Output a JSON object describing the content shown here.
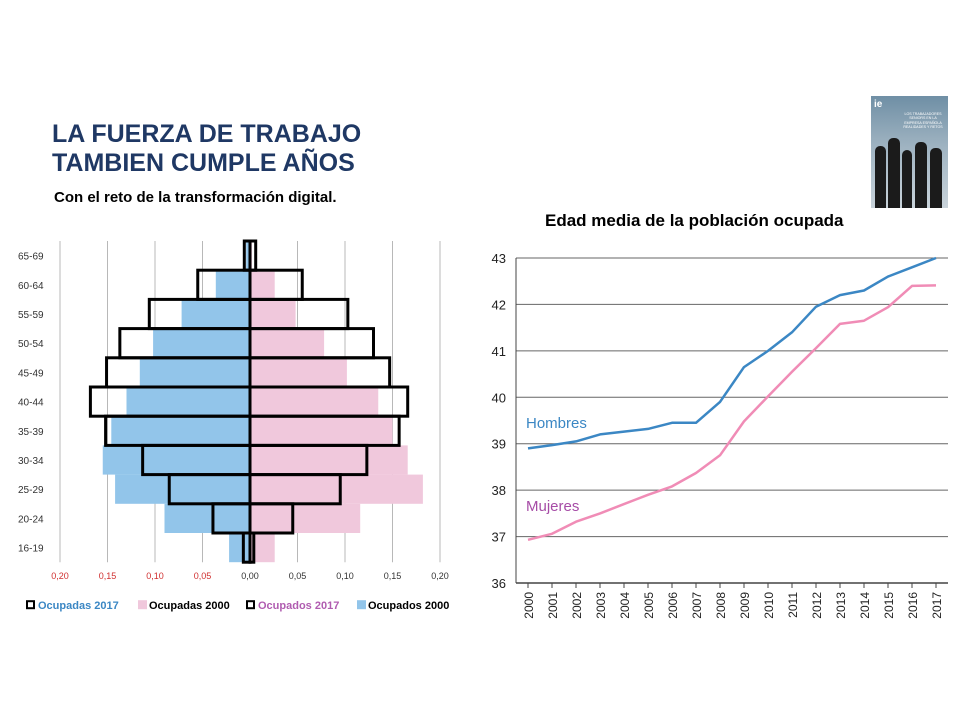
{
  "slide": {
    "title_line1": "LA FUERZA DE TRABAJO",
    "title_line2": "TAMBIEN CUMPLE AÑOS",
    "subtitle": "Con el reto de la transformación digital."
  },
  "book_cover": {
    "logo": "ie",
    "text": "LOS TRABAJADORES SENIORS EN LA EMPRESA ESPAÑOLA REALIDADES Y RETOS"
  },
  "colors": {
    "title": "#1f3864",
    "ocupadas_2000": "#f0c8dc",
    "ocupados_2000": "#92c5ea",
    "outline_2017": "#000000",
    "hombres_line": "#3b87c4",
    "mujeres_line": "#f08cb6",
    "hombres_label": "#3b87c4",
    "mujeres_label": "#a64ca6",
    "grid": "#999999"
  },
  "chart_data": [
    {
      "type": "bar",
      "subtype": "population-pyramid",
      "title": "",
      "categories": [
        "65-69",
        "60-64",
        "55-59",
        "50-54",
        "45-49",
        "40-44",
        "35-39",
        "30-34",
        "25-29",
        "20-24",
        "16-19"
      ],
      "x_ticks": [
        "0,20",
        "0,15",
        "0,10",
        "0,05",
        "0,00",
        "0,05",
        "0,10",
        "0,15",
        "0,20"
      ],
      "xlim": [
        -0.2,
        0.2
      ],
      "series": [
        {
          "name": "Ocupados 2000",
          "side": "left",
          "style": "fill",
          "values": [
            0.004,
            0.036,
            0.072,
            0.102,
            0.116,
            0.13,
            0.146,
            0.155,
            0.142,
            0.09,
            0.022
          ]
        },
        {
          "name": "Ocupados 2017",
          "side": "left",
          "style": "outline",
          "values": [
            0.006,
            0.055,
            0.106,
            0.137,
            0.151,
            0.168,
            0.152,
            0.113,
            0.085,
            0.039,
            0.007
          ]
        },
        {
          "name": "Ocupadas 2000",
          "side": "right",
          "style": "fill",
          "values": [
            0.002,
            0.026,
            0.048,
            0.078,
            0.102,
            0.135,
            0.15,
            0.166,
            0.182,
            0.116,
            0.026
          ]
        },
        {
          "name": "Ocupadas 2017",
          "side": "right",
          "style": "outline",
          "values": [
            0.006,
            0.055,
            0.103,
            0.13,
            0.147,
            0.166,
            0.157,
            0.123,
            0.095,
            0.045,
            0.004
          ]
        }
      ],
      "legend": [
        {
          "label": "Ocupadas 2017",
          "marker": "outline",
          "text_color": "#3b87c4"
        },
        {
          "label": "Ocupadas 2000",
          "marker": "pink",
          "text_color": "#000000"
        },
        {
          "label": "Ocupados 2017",
          "marker": "outline",
          "text_color": "#b05cb0"
        },
        {
          "label": "Ocupados 2000",
          "marker": "blue",
          "text_color": "#000000"
        }
      ],
      "legend_position": "bottom"
    },
    {
      "type": "line",
      "title": "Edad media de la población ocupada",
      "x": [
        "2000",
        "2001",
        "2002",
        "2003",
        "2004",
        "2005",
        "2006",
        "2007",
        "2008",
        "2009",
        "2010",
        "2011",
        "2012",
        "2013",
        "2014",
        "2015",
        "2016",
        "2017"
      ],
      "ylim": [
        36,
        43
      ],
      "y_ticks": [
        "36",
        "37",
        "38",
        "39",
        "40",
        "41",
        "42",
        "43"
      ],
      "series": [
        {
          "name": "Hombres",
          "values": [
            38.9,
            38.97,
            39.05,
            39.2,
            39.26,
            39.32,
            39.45,
            39.45,
            39.9,
            40.65,
            41.0,
            41.4,
            41.95,
            42.2,
            42.3,
            42.6,
            42.8,
            43.0
          ]
        },
        {
          "name": "Mujeres",
          "values": [
            36.93,
            37.06,
            37.32,
            37.5,
            37.7,
            37.9,
            38.08,
            38.37,
            38.75,
            39.48,
            40.02,
            40.55,
            41.06,
            41.58,
            41.65,
            41.94,
            42.4,
            42.41
          ]
        }
      ],
      "labels": {
        "hombres": "Hombres",
        "mujeres": "Mujeres"
      },
      "grid": true
    }
  ]
}
